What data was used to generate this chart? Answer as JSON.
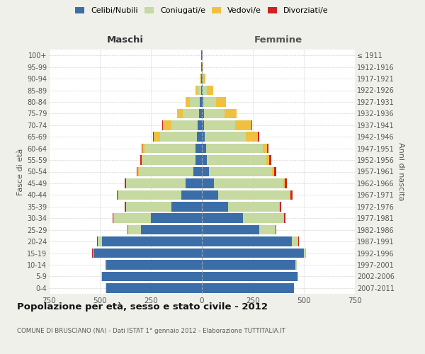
{
  "age_groups": [
    "0-4",
    "5-9",
    "10-14",
    "15-19",
    "20-24",
    "25-29",
    "30-34",
    "35-39",
    "40-44",
    "45-49",
    "50-54",
    "55-59",
    "60-64",
    "65-69",
    "70-74",
    "75-79",
    "80-84",
    "85-89",
    "90-94",
    "95-99",
    "100+"
  ],
  "birth_years": [
    "2007-2011",
    "2002-2006",
    "1997-2001",
    "1992-1996",
    "1987-1991",
    "1982-1986",
    "1977-1981",
    "1972-1976",
    "1967-1971",
    "1962-1966",
    "1957-1961",
    "1952-1956",
    "1947-1951",
    "1942-1946",
    "1937-1941",
    "1932-1936",
    "1927-1931",
    "1922-1926",
    "1917-1921",
    "1912-1916",
    "≤ 1911"
  ],
  "male": {
    "celibi": [
      470,
      490,
      470,
      530,
      490,
      300,
      250,
      150,
      100,
      80,
      40,
      30,
      30,
      25,
      20,
      15,
      10,
      5,
      3,
      2,
      2
    ],
    "coniugati": [
      2,
      2,
      3,
      5,
      20,
      60,
      180,
      220,
      310,
      290,
      270,
      260,
      250,
      180,
      130,
      80,
      50,
      15,
      5,
      2,
      1
    ],
    "vedovi": [
      1,
      1,
      1,
      1,
      2,
      2,
      3,
      2,
      2,
      3,
      5,
      5,
      10,
      30,
      40,
      25,
      20,
      10,
      3,
      1,
      0
    ],
    "divorziati": [
      0,
      0,
      1,
      1,
      2,
      2,
      5,
      5,
      5,
      5,
      5,
      8,
      5,
      3,
      5,
      0,
      0,
      0,
      0,
      0,
      0
    ]
  },
  "female": {
    "nubili": [
      450,
      470,
      460,
      500,
      440,
      280,
      200,
      130,
      80,
      60,
      35,
      25,
      20,
      15,
      12,
      10,
      8,
      5,
      3,
      2,
      2
    ],
    "coniugate": [
      2,
      2,
      4,
      8,
      30,
      80,
      200,
      250,
      350,
      340,
      310,
      290,
      280,
      200,
      150,
      100,
      60,
      20,
      5,
      2,
      1
    ],
    "vedove": [
      1,
      1,
      1,
      1,
      2,
      2,
      3,
      3,
      3,
      5,
      10,
      15,
      20,
      60,
      80,
      60,
      50,
      30,
      10,
      3,
      1
    ],
    "divorziate": [
      0,
      0,
      0,
      1,
      2,
      2,
      5,
      5,
      10,
      10,
      10,
      10,
      5,
      5,
      5,
      0,
      0,
      0,
      0,
      0,
      0
    ]
  },
  "colors": {
    "celibi": "#3b6ea8",
    "coniugati": "#c5d9a0",
    "vedovi": "#f0c040",
    "divorziati": "#cc2222"
  },
  "xlim": 750,
  "title": "Popolazione per età, sesso e stato civile - 2012",
  "subtitle": "COMUNE DI BRUSCIANO (NA) - Dati ISTAT 1° gennaio 2012 - Elaborazione TUTTITALIA.IT",
  "xlabel_left": "Maschi",
  "xlabel_right": "Femmine",
  "ylabel_left": "Fasce di età",
  "ylabel_right": "Anni di nascita",
  "bg_color": "#f0f0eb",
  "plot_bg": "#ffffff"
}
